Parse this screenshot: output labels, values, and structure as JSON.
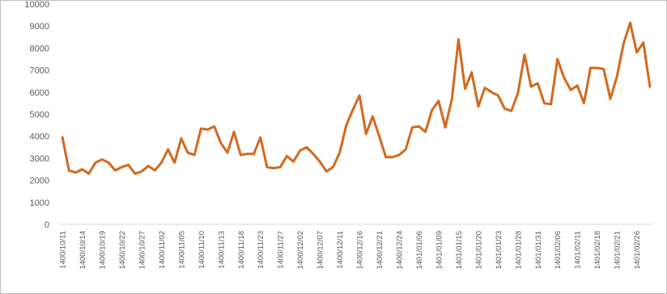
{
  "chart_data": {
    "type": "line",
    "title": "",
    "xlabel": "",
    "ylabel": "",
    "ylim": [
      0,
      10000
    ],
    "yticks": [
      0,
      1000,
      2000,
      3000,
      4000,
      5000,
      6000,
      7000,
      8000,
      9000,
      10000
    ],
    "grid": false,
    "legend": "none",
    "line_color": "#d2691e",
    "x_tick_labels": [
      "1400/10/11",
      "1400/10/14",
      "1400/10/19",
      "1400/10/22",
      "1400/10/27",
      "1400/11/02",
      "1400/11/05",
      "1400/11/10",
      "1400/11/13",
      "1400/11/18",
      "1400/11/23",
      "1400/11/27",
      "1400/12/02",
      "1400/12/07",
      "1400/12/11",
      "1400/12/16",
      "1400/12/21",
      "1400/12/24",
      "1401/01/06",
      "1401/01/09",
      "1401/01/15",
      "1401/01/20",
      "1401/01/23",
      "1401/01/28",
      "1401/01/31",
      "1401/02/06",
      "1401/02/11",
      "1401/02/18",
      "1401/02/21",
      "1401/02/26"
    ],
    "series": [
      {
        "values": [
          3950,
          2450,
          2350,
          2500,
          2300,
          2800,
          2950,
          2800,
          2450,
          2600,
          2700,
          2300,
          2400,
          2650,
          2450,
          2800,
          3400,
          2800,
          3900,
          3250,
          3150,
          4350,
          4300,
          4450,
          3700,
          3250,
          4200,
          3150,
          3200,
          3200,
          3950,
          2600,
          2550,
          2600,
          3100,
          2850,
          3350,
          3500,
          3200,
          2850,
          2400,
          2600,
          3250,
          4500,
          5200,
          5850,
          4100,
          4900,
          4000,
          3050,
          3050,
          3150,
          3400,
          4400,
          4450,
          4200,
          5200,
          5600,
          4400,
          5700,
          8400,
          6150,
          6900,
          5350,
          6200,
          6000,
          5850,
          5250,
          5150,
          5950,
          7700,
          6250,
          6400,
          5500,
          5450,
          7500,
          6650,
          6100,
          6300,
          5500,
          7100,
          7100,
          7050,
          5700,
          6700,
          8200,
          9150,
          7800,
          8250,
          6250
        ]
      }
    ]
  }
}
